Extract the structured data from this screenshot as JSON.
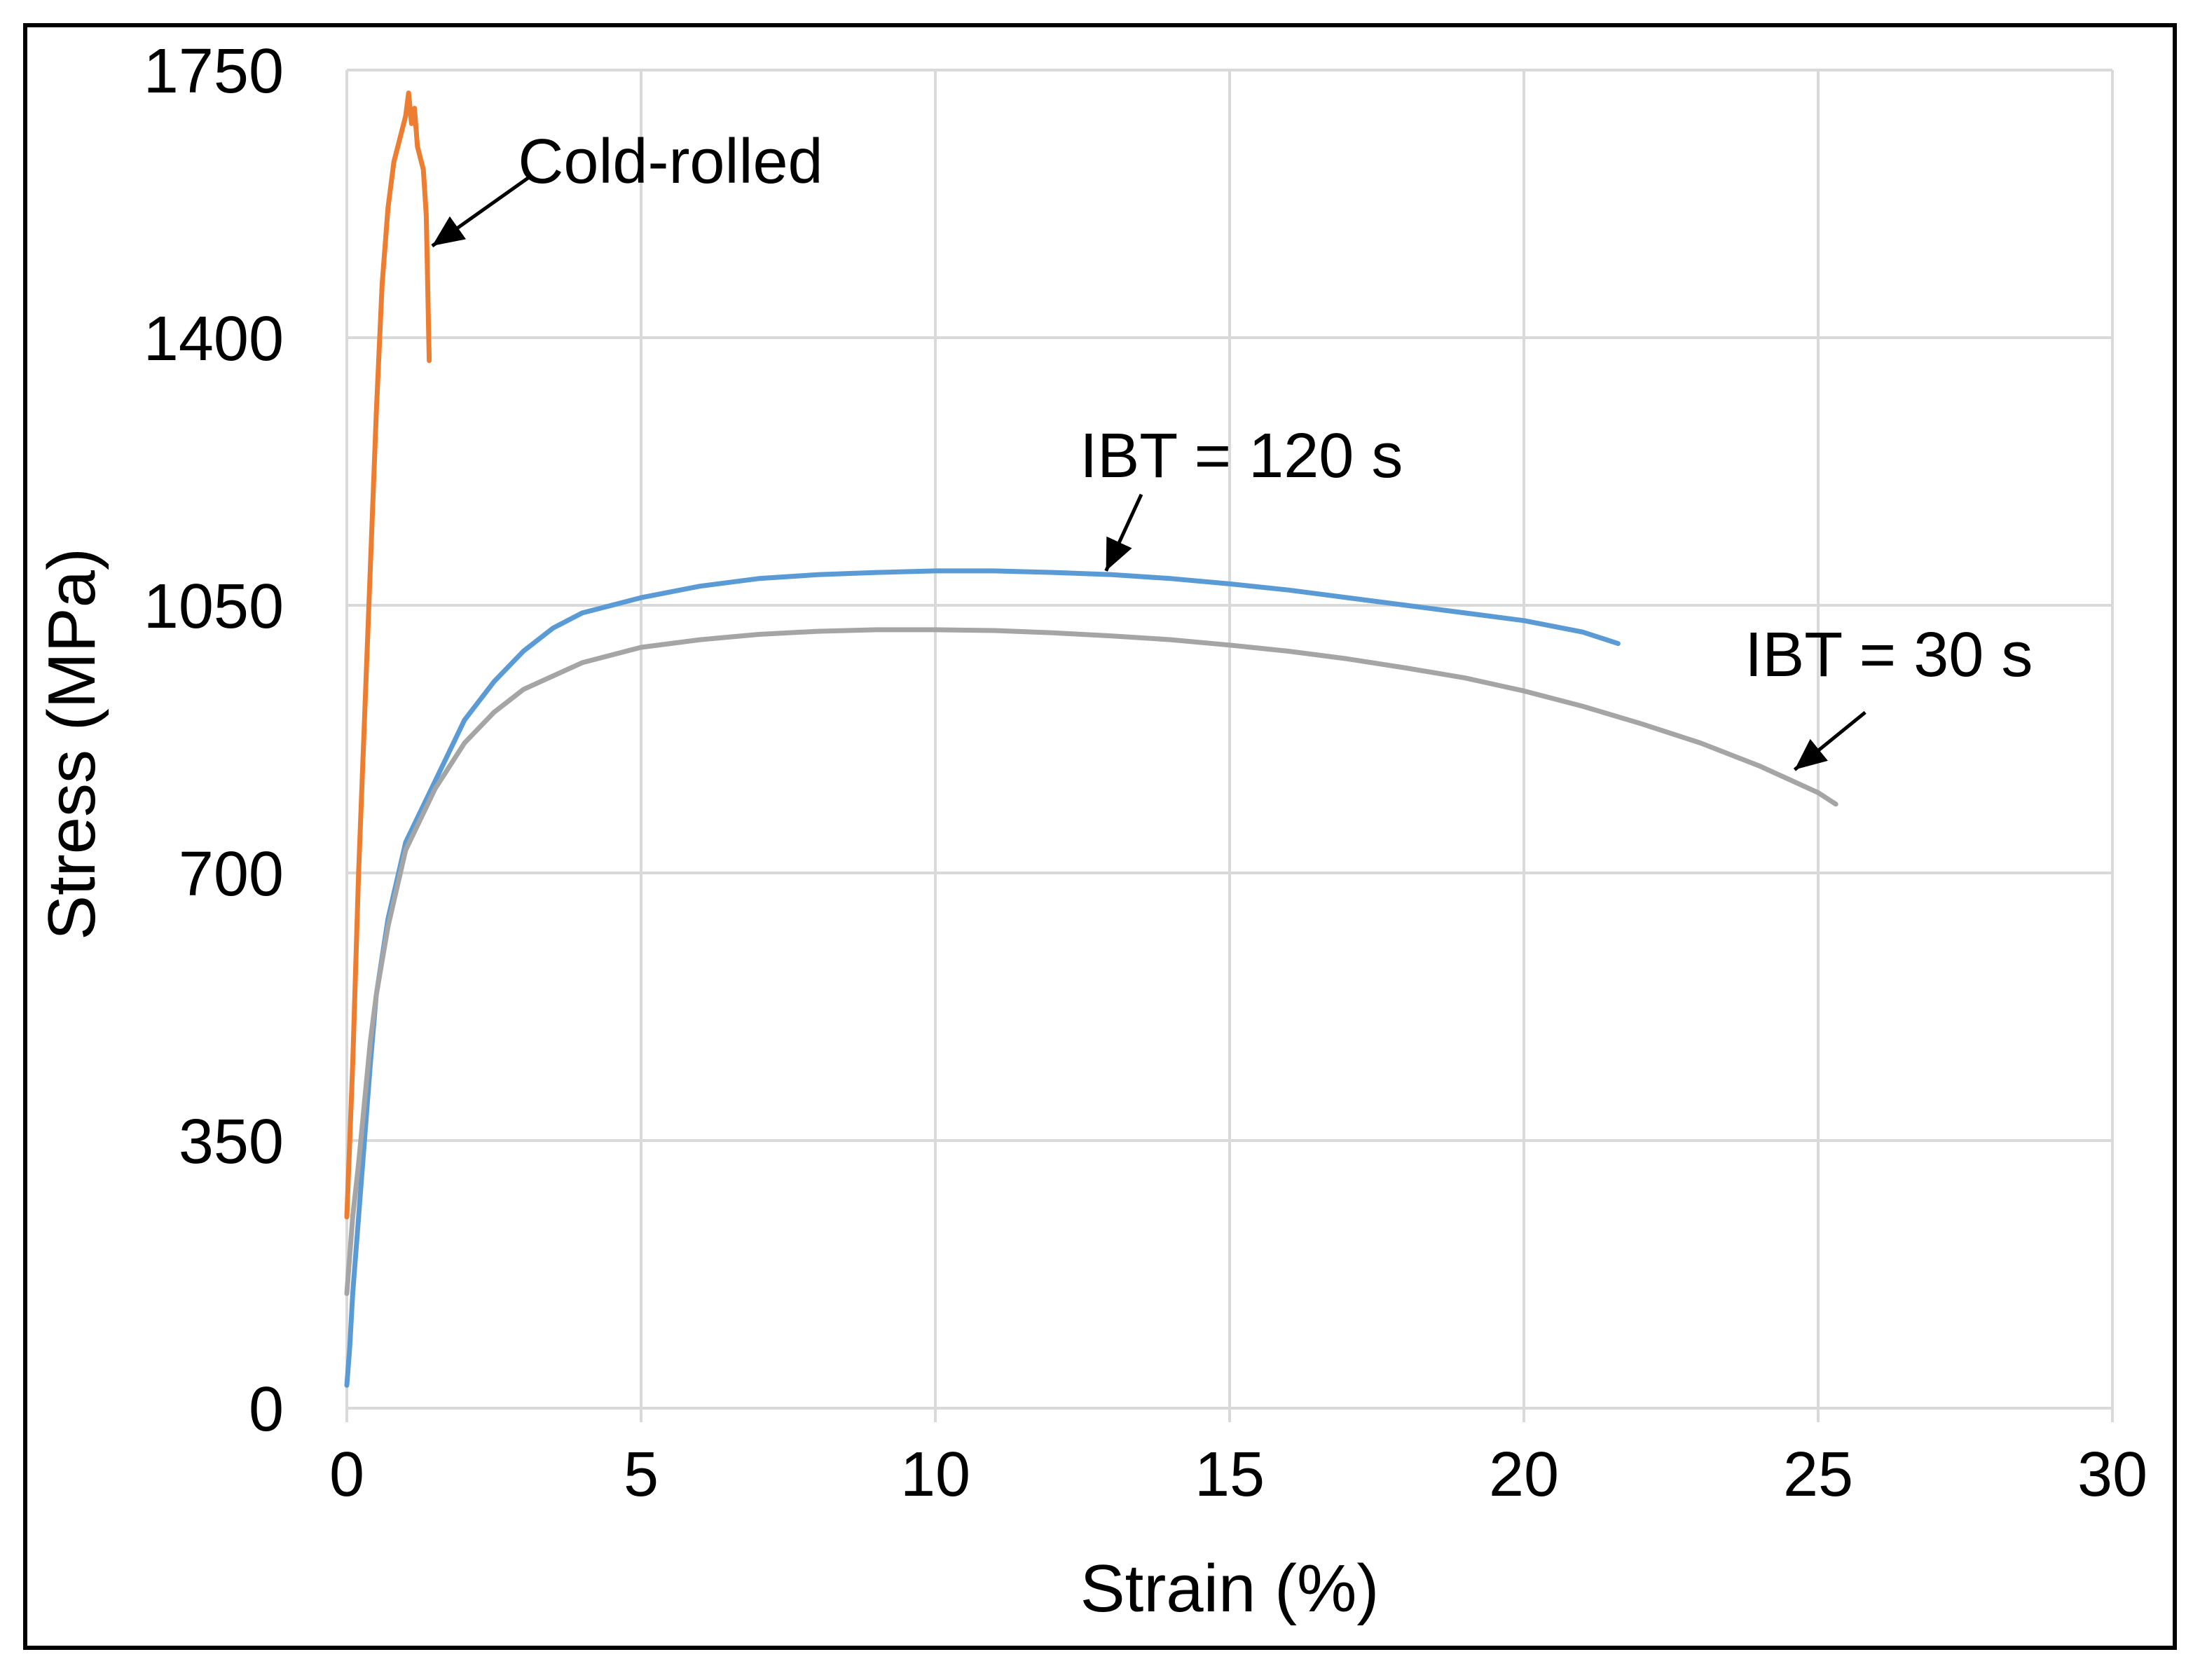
{
  "chart_data": {
    "type": "line",
    "title": "",
    "xlabel": "Strain (%)",
    "ylabel": "Stress (MPa)",
    "xlim": [
      0,
      30
    ],
    "ylim": [
      0,
      1750
    ],
    "x_ticks": [
      0,
      5,
      10,
      15,
      20,
      25,
      30
    ],
    "y_ticks": [
      0,
      350,
      700,
      1050,
      1400,
      1750
    ],
    "grid": true,
    "legend": "none",
    "series": [
      {
        "name": "Cold-rolled",
        "color": "#ED7D31",
        "x": [
          0,
          0.05,
          0.1,
          0.2,
          0.3,
          0.4,
          0.5,
          0.6,
          0.7,
          0.8,
          0.9,
          1.0,
          1.05,
          1.1,
          1.15,
          1.2,
          1.3,
          1.35,
          1.4
        ],
        "y": [
          250,
          350,
          450,
          700,
          900,
          1100,
          1300,
          1470,
          1570,
          1630,
          1660,
          1690,
          1720,
          1680,
          1700,
          1650,
          1620,
          1560,
          1370
        ]
      },
      {
        "name": "IBT = 120 s",
        "color": "#5B9BD5",
        "x": [
          0,
          0.05,
          0.1,
          0.2,
          0.3,
          0.4,
          0.5,
          0.7,
          1.0,
          1.5,
          2.0,
          2.5,
          3.0,
          3.5,
          4.0,
          5.0,
          6.0,
          7.0,
          8.0,
          9.0,
          10.0,
          11.0,
          12.0,
          13.0,
          14.0,
          15.0,
          16.0,
          17.0,
          18.0,
          19.0,
          20.0,
          21.0,
          21.6
        ],
        "y": [
          30,
          80,
          150,
          250,
          350,
          450,
          540,
          640,
          740,
          820,
          900,
          950,
          990,
          1020,
          1040,
          1060,
          1075,
          1085,
          1090,
          1093,
          1095,
          1095,
          1093,
          1090,
          1085,
          1078,
          1070,
          1060,
          1050,
          1040,
          1030,
          1015,
          1000
        ]
      },
      {
        "name": "IBT = 30 s",
        "color": "#A5A5A5",
        "x": [
          0,
          0.05,
          0.1,
          0.2,
          0.3,
          0.4,
          0.5,
          0.7,
          1.0,
          1.5,
          2.0,
          2.5,
          3.0,
          4.0,
          5.0,
          6.0,
          7.0,
          8.0,
          9.0,
          10.0,
          11.0,
          12.0,
          13.0,
          14.0,
          15.0,
          16.0,
          17.0,
          18.0,
          19.0,
          20.0,
          21.0,
          22.0,
          23.0,
          24.0,
          25.0,
          25.3
        ],
        "y": [
          150,
          200,
          250,
          320,
          400,
          480,
          540,
          630,
          730,
          810,
          870,
          910,
          940,
          975,
          995,
          1005,
          1012,
          1016,
          1018,
          1018,
          1017,
          1014,
          1010,
          1005,
          998,
          990,
          980,
          968,
          955,
          938,
          918,
          895,
          870,
          840,
          805,
          790
        ]
      }
    ],
    "annotations": [
      {
        "text": "Cold-rolled",
        "series": "Cold-rolled",
        "label_at": {
          "x": 5.5,
          "y": 1630
        },
        "arrow_from": {
          "x": 3.1,
          "y": 1610
        },
        "arrow_to": {
          "x": 1.45,
          "y": 1520
        }
      },
      {
        "text": "IBT = 120 s",
        "series": "IBT = 120 s",
        "label_at": {
          "x": 15.2,
          "y": 1245
        },
        "arrow_from": {
          "x": 13.5,
          "y": 1195
        },
        "arrow_to": {
          "x": 12.9,
          "y": 1095
        }
      },
      {
        "text": "IBT = 30 s",
        "series": "IBT = 30 s",
        "label_at": {
          "x": 26.2,
          "y": 985
        },
        "arrow_from": {
          "x": 25.8,
          "y": 910
        },
        "arrow_to": {
          "x": 24.6,
          "y": 835
        }
      }
    ]
  }
}
